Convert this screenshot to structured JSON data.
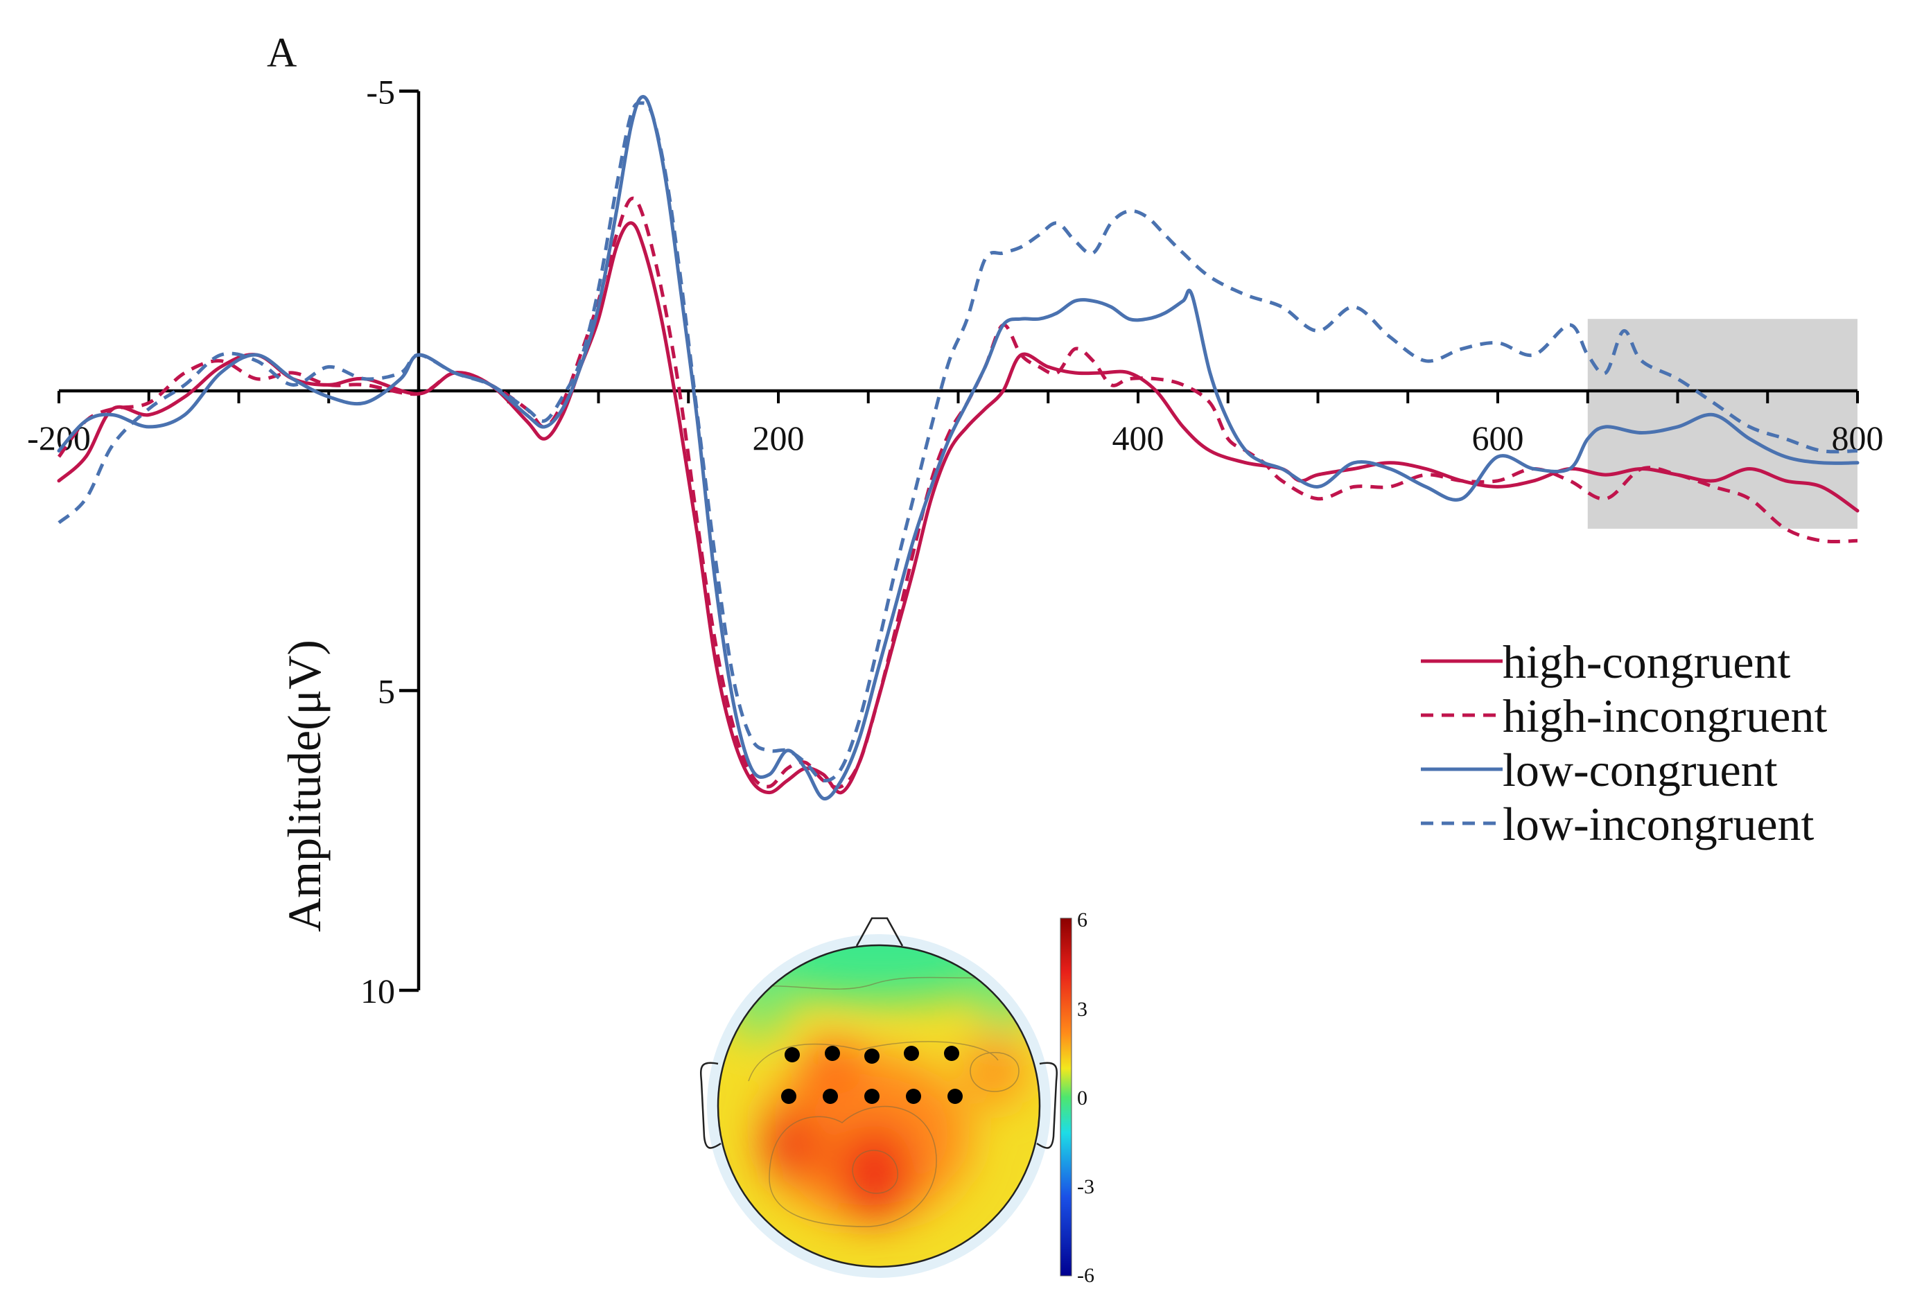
{
  "chart_data": {
    "type": "line",
    "panel_label": "A",
    "xlabel": "",
    "ylabel": "Amplitude(μV)",
    "xlim": [
      -200,
      800
    ],
    "ylim": [
      -5,
      10
    ],
    "y_inverted": true,
    "x_ticks": [
      -200,
      200,
      400,
      600,
      800
    ],
    "x_tick_labels": [
      "-200",
      "200",
      "400",
      "600",
      "800"
    ],
    "y_ticks": [
      -5,
      5,
      10
    ],
    "y_tick_labels": [
      "-5",
      "5",
      "10"
    ],
    "shaded_window": [
      650,
      800
    ],
    "legend": [
      "high-congruent",
      "high-incongruent",
      "low-congruent",
      "low-incongruent"
    ],
    "series": [
      {
        "name": "high-congruent",
        "color": "#c0144c",
        "style": "solid",
        "points": [
          [
            -200,
            1.5
          ],
          [
            -185,
            1.1
          ],
          [
            -170,
            0.3
          ],
          [
            -150,
            0.4
          ],
          [
            -130,
            0.1
          ],
          [
            -110,
            -0.4
          ],
          [
            -90,
            -0.6
          ],
          [
            -70,
            -0.2
          ],
          [
            -50,
            -0.1
          ],
          [
            -30,
            -0.2
          ],
          [
            0,
            0.05
          ],
          [
            20,
            -0.3
          ],
          [
            40,
            -0.1
          ],
          [
            60,
            0.5
          ],
          [
            70,
            0.8
          ],
          [
            80,
            0.4
          ],
          [
            90,
            -0.4
          ],
          [
            100,
            -1.2
          ],
          [
            110,
            -2.4
          ],
          [
            118,
            -2.8
          ],
          [
            125,
            -2.4
          ],
          [
            135,
            -1.2
          ],
          [
            145,
            0.5
          ],
          [
            155,
            2.4
          ],
          [
            165,
            4.5
          ],
          [
            175,
            5.8
          ],
          [
            185,
            6.5
          ],
          [
            195,
            6.7
          ],
          [
            205,
            6.5
          ],
          [
            215,
            6.3
          ],
          [
            225,
            6.4
          ],
          [
            235,
            6.7
          ],
          [
            245,
            6.2
          ],
          [
            255,
            5.2
          ],
          [
            265,
            4.1
          ],
          [
            275,
            3.0
          ],
          [
            285,
            1.8
          ],
          [
            295,
            1.0
          ],
          [
            305,
            0.6
          ],
          [
            315,
            0.3
          ],
          [
            325,
            0.0
          ],
          [
            335,
            -0.6
          ],
          [
            350,
            -0.4
          ],
          [
            365,
            -0.3
          ],
          [
            380,
            -0.3
          ],
          [
            395,
            -0.3
          ],
          [
            410,
            0.0
          ],
          [
            425,
            0.6
          ],
          [
            440,
            1.0
          ],
          [
            460,
            1.2
          ],
          [
            480,
            1.3
          ],
          [
            490,
            1.5
          ],
          [
            500,
            1.4
          ],
          [
            520,
            1.3
          ],
          [
            540,
            1.2
          ],
          [
            560,
            1.3
          ],
          [
            580,
            1.5
          ],
          [
            600,
            1.6
          ],
          [
            620,
            1.5
          ],
          [
            640,
            1.3
          ],
          [
            660,
            1.4
          ],
          [
            680,
            1.3
          ],
          [
            700,
            1.4
          ],
          [
            720,
            1.5
          ],
          [
            740,
            1.3
          ],
          [
            760,
            1.5
          ],
          [
            780,
            1.6
          ],
          [
            800,
            2.0
          ]
        ]
      },
      {
        "name": "high-incongruent",
        "color": "#c0144c",
        "style": "dashed",
        "points": [
          [
            -200,
            1.1
          ],
          [
            -185,
            0.5
          ],
          [
            -170,
            0.3
          ],
          [
            -150,
            0.2
          ],
          [
            -130,
            -0.3
          ],
          [
            -110,
            -0.5
          ],
          [
            -90,
            -0.2
          ],
          [
            -70,
            -0.3
          ],
          [
            -50,
            -0.1
          ],
          [
            -30,
            -0.1
          ],
          [
            0,
            0.05
          ],
          [
            20,
            -0.3
          ],
          [
            40,
            -0.1
          ],
          [
            60,
            0.3
          ],
          [
            70,
            0.6
          ],
          [
            80,
            0.2
          ],
          [
            90,
            -0.6
          ],
          [
            100,
            -1.5
          ],
          [
            110,
            -2.6
          ],
          [
            118,
            -3.2
          ],
          [
            125,
            -2.9
          ],
          [
            135,
            -1.7
          ],
          [
            145,
            0.0
          ],
          [
            155,
            2.2
          ],
          [
            165,
            4.2
          ],
          [
            175,
            5.6
          ],
          [
            185,
            6.4
          ],
          [
            195,
            6.6
          ],
          [
            205,
            6.3
          ],
          [
            215,
            6.2
          ],
          [
            225,
            6.5
          ],
          [
            235,
            6.6
          ],
          [
            245,
            6.2
          ],
          [
            255,
            5.2
          ],
          [
            265,
            4.0
          ],
          [
            275,
            2.7
          ],
          [
            285,
            1.5
          ],
          [
            295,
            0.7
          ],
          [
            305,
            0.2
          ],
          [
            315,
            -0.4
          ],
          [
            325,
            -1.1
          ],
          [
            335,
            -0.6
          ],
          [
            345,
            -0.4
          ],
          [
            355,
            -0.3
          ],
          [
            365,
            -0.7
          ],
          [
            375,
            -0.5
          ],
          [
            385,
            -0.1
          ],
          [
            395,
            -0.2
          ],
          [
            410,
            -0.2
          ],
          [
            425,
            -0.1
          ],
          [
            440,
            0.2
          ],
          [
            450,
            0.8
          ],
          [
            460,
            1.0
          ],
          [
            470,
            1.2
          ],
          [
            480,
            1.5
          ],
          [
            500,
            1.8
          ],
          [
            520,
            1.6
          ],
          [
            540,
            1.6
          ],
          [
            560,
            1.4
          ],
          [
            580,
            1.5
          ],
          [
            600,
            1.5
          ],
          [
            620,
            1.3
          ],
          [
            640,
            1.5
          ],
          [
            660,
            1.8
          ],
          [
            680,
            1.3
          ],
          [
            700,
            1.4
          ],
          [
            720,
            1.6
          ],
          [
            740,
            1.8
          ],
          [
            760,
            2.3
          ],
          [
            780,
            2.5
          ],
          [
            800,
            2.5
          ]
        ]
      },
      {
        "name": "low-congruent",
        "color": "#4a72b0",
        "style": "solid",
        "points": [
          [
            -200,
            1.0
          ],
          [
            -185,
            0.5
          ],
          [
            -170,
            0.4
          ],
          [
            -150,
            0.6
          ],
          [
            -130,
            0.4
          ],
          [
            -110,
            -0.3
          ],
          [
            -90,
            -0.6
          ],
          [
            -70,
            -0.2
          ],
          [
            -50,
            0.1
          ],
          [
            -30,
            0.2
          ],
          [
            -10,
            -0.2
          ],
          [
            0,
            -0.6
          ],
          [
            20,
            -0.3
          ],
          [
            40,
            -0.1
          ],
          [
            60,
            0.4
          ],
          [
            70,
            0.6
          ],
          [
            80,
            0.3
          ],
          [
            90,
            -0.4
          ],
          [
            100,
            -1.4
          ],
          [
            110,
            -3.0
          ],
          [
            118,
            -4.4
          ],
          [
            124,
            -4.9
          ],
          [
            130,
            -4.6
          ],
          [
            138,
            -3.4
          ],
          [
            146,
            -1.6
          ],
          [
            155,
            0.5
          ],
          [
            165,
            3.2
          ],
          [
            175,
            5.2
          ],
          [
            185,
            6.3
          ],
          [
            195,
            6.4
          ],
          [
            205,
            6.0
          ],
          [
            215,
            6.3
          ],
          [
            225,
            6.8
          ],
          [
            235,
            6.5
          ],
          [
            245,
            5.8
          ],
          [
            255,
            4.7
          ],
          [
            265,
            3.6
          ],
          [
            275,
            2.5
          ],
          [
            285,
            1.6
          ],
          [
            295,
            0.8
          ],
          [
            305,
            0.2
          ],
          [
            315,
            -0.4
          ],
          [
            325,
            -1.1
          ],
          [
            335,
            -1.2
          ],
          [
            345,
            -1.2
          ],
          [
            355,
            -1.3
          ],
          [
            365,
            -1.5
          ],
          [
            375,
            -1.5
          ],
          [
            385,
            -1.4
          ],
          [
            395,
            -1.2
          ],
          [
            405,
            -1.2
          ],
          [
            415,
            -1.3
          ],
          [
            425,
            -1.5
          ],
          [
            430,
            -1.6
          ],
          [
            440,
            -0.3
          ],
          [
            450,
            0.5
          ],
          [
            460,
            1.0
          ],
          [
            470,
            1.2
          ],
          [
            480,
            1.3
          ],
          [
            500,
            1.6
          ],
          [
            520,
            1.2
          ],
          [
            540,
            1.3
          ],
          [
            560,
            1.6
          ],
          [
            580,
            1.8
          ],
          [
            600,
            1.1
          ],
          [
            620,
            1.3
          ],
          [
            640,
            1.3
          ],
          [
            650,
            0.8
          ],
          [
            660,
            0.6
          ],
          [
            680,
            0.7
          ],
          [
            700,
            0.6
          ],
          [
            720,
            0.4
          ],
          [
            740,
            0.8
          ],
          [
            760,
            1.1
          ],
          [
            780,
            1.2
          ],
          [
            800,
            1.2
          ]
        ]
      },
      {
        "name": "low-incongruent",
        "color": "#4a72b0",
        "style": "dashed",
        "points": [
          [
            -200,
            2.2
          ],
          [
            -185,
            1.8
          ],
          [
            -170,
            0.9
          ],
          [
            -150,
            0.3
          ],
          [
            -130,
            -0.1
          ],
          [
            -110,
            -0.6
          ],
          [
            -90,
            -0.5
          ],
          [
            -70,
            -0.1
          ],
          [
            -50,
            -0.4
          ],
          [
            -30,
            -0.2
          ],
          [
            -10,
            -0.3
          ],
          [
            0,
            -0.6
          ],
          [
            20,
            -0.3
          ],
          [
            40,
            -0.1
          ],
          [
            60,
            0.3
          ],
          [
            70,
            0.5
          ],
          [
            80,
            0.1
          ],
          [
            90,
            -0.5
          ],
          [
            100,
            -1.7
          ],
          [
            110,
            -3.4
          ],
          [
            118,
            -4.6
          ],
          [
            124,
            -4.8
          ],
          [
            130,
            -4.6
          ],
          [
            138,
            -3.5
          ],
          [
            146,
            -1.8
          ],
          [
            155,
            0.4
          ],
          [
            165,
            2.8
          ],
          [
            175,
            4.8
          ],
          [
            185,
            5.8
          ],
          [
            195,
            6.0
          ],
          [
            205,
            6.0
          ],
          [
            215,
            6.2
          ],
          [
            225,
            6.5
          ],
          [
            235,
            6.3
          ],
          [
            245,
            5.5
          ],
          [
            255,
            4.3
          ],
          [
            265,
            3.0
          ],
          [
            275,
            1.8
          ],
          [
            285,
            0.6
          ],
          [
            295,
            -0.5
          ],
          [
            305,
            -1.2
          ],
          [
            315,
            -2.2
          ],
          [
            325,
            -2.3
          ],
          [
            335,
            -2.4
          ],
          [
            345,
            -2.6
          ],
          [
            355,
            -2.8
          ],
          [
            365,
            -2.5
          ],
          [
            375,
            -2.3
          ],
          [
            385,
            -2.8
          ],
          [
            395,
            -3.0
          ],
          [
            405,
            -2.9
          ],
          [
            415,
            -2.6
          ],
          [
            425,
            -2.3
          ],
          [
            440,
            -1.9
          ],
          [
            460,
            -1.6
          ],
          [
            480,
            -1.4
          ],
          [
            500,
            -1.0
          ],
          [
            520,
            -1.4
          ],
          [
            540,
            -0.9
          ],
          [
            560,
            -0.5
          ],
          [
            580,
            -0.7
          ],
          [
            600,
            -0.8
          ],
          [
            620,
            -0.6
          ],
          [
            640,
            -1.1
          ],
          [
            650,
            -0.6
          ],
          [
            660,
            -0.3
          ],
          [
            670,
            -1.0
          ],
          [
            680,
            -0.5
          ],
          [
            700,
            -0.2
          ],
          [
            720,
            0.2
          ],
          [
            740,
            0.6
          ],
          [
            760,
            0.8
          ],
          [
            780,
            1.0
          ],
          [
            800,
            1.0
          ]
        ]
      }
    ],
    "topomap": {
      "colorbar_ticks": [
        6,
        3,
        0,
        -3,
        -6
      ],
      "colorbar_tick_labels": [
        "6",
        "3",
        "0",
        "-3",
        "-6"
      ]
    }
  }
}
